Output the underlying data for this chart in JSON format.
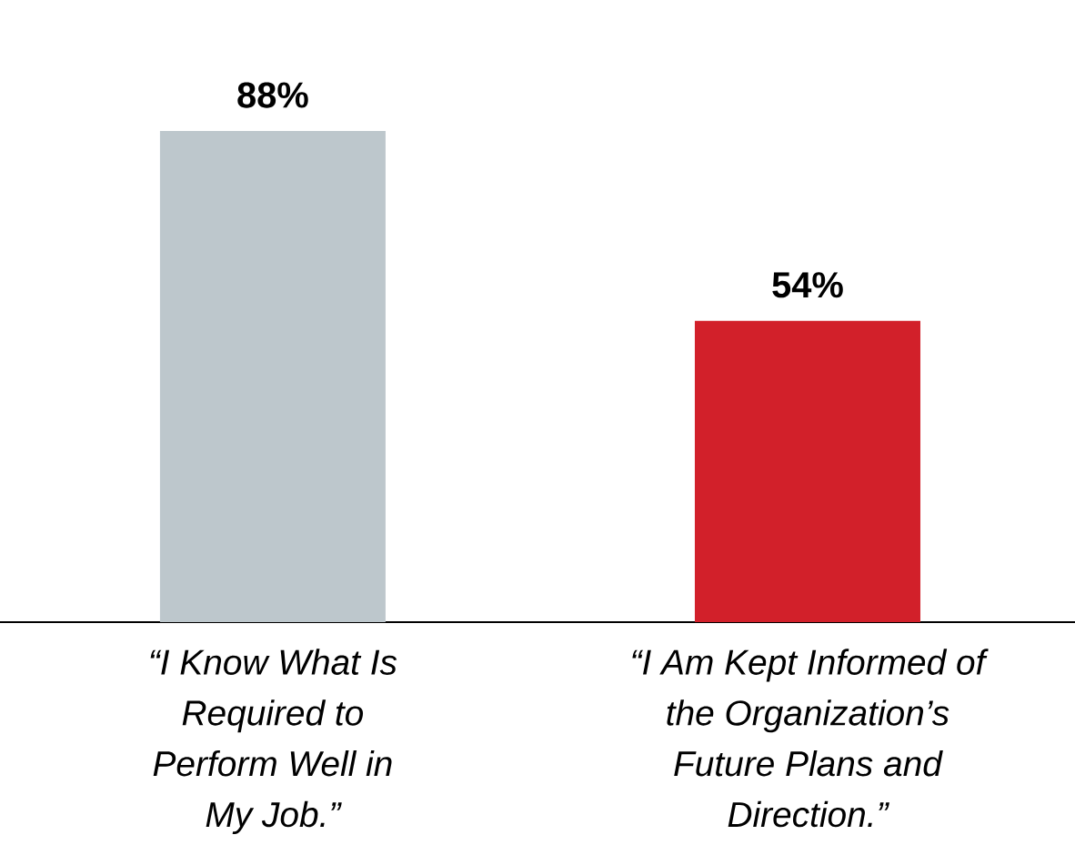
{
  "chart_data": {
    "type": "bar",
    "categories": [
      "“I Know What Is Required to Perform Well in My Job.”",
      "“I Am Kept Informed of the Organization’s Future Plans and Direction.”"
    ],
    "values": [
      88,
      54
    ],
    "colors": [
      "#bdc7cc",
      "#d2202a"
    ],
    "value_labels": [
      "88%",
      "54%"
    ]
  }
}
